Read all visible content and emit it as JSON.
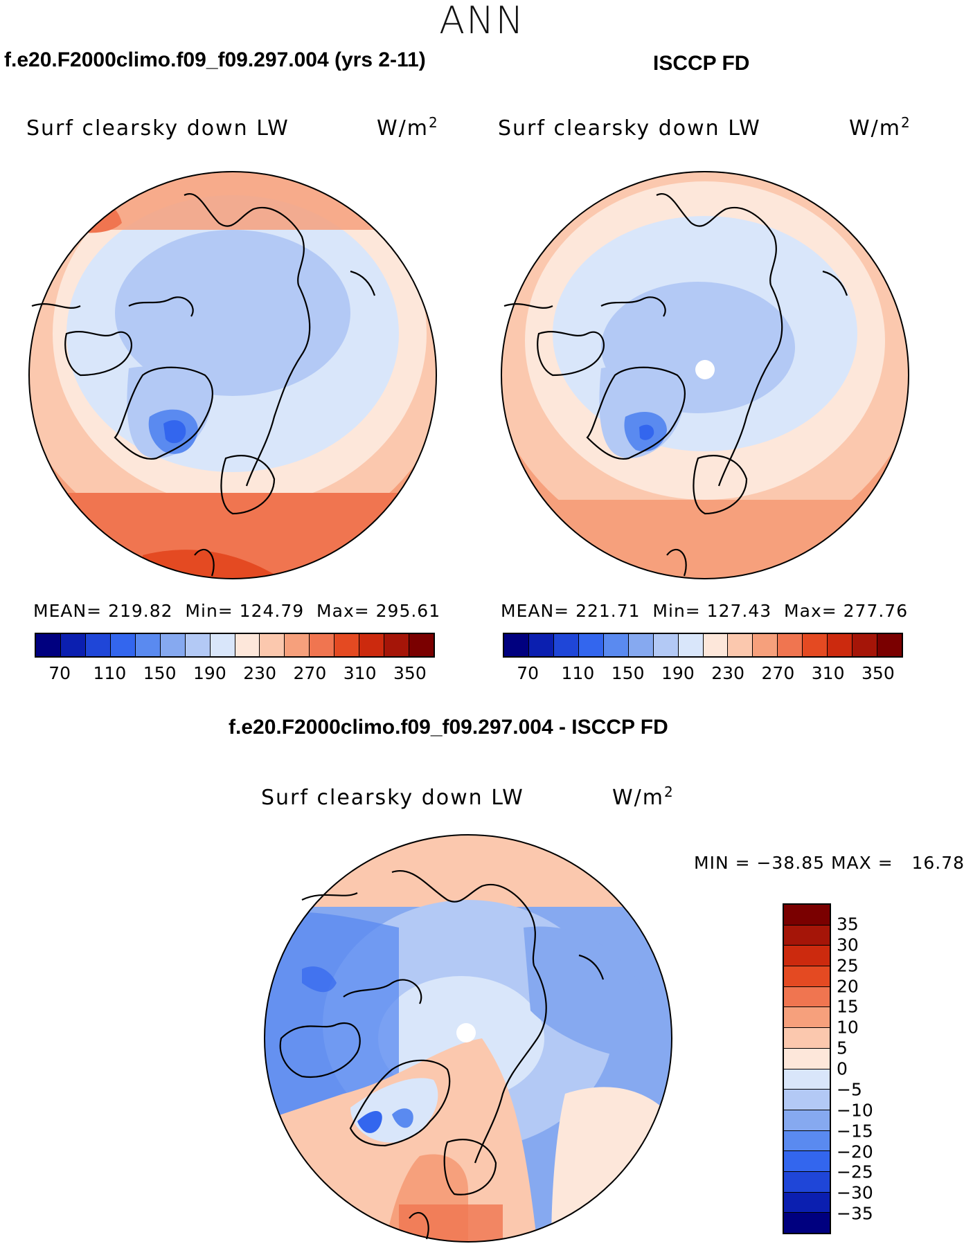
{
  "season": "ANN",
  "panels": {
    "model": {
      "title": "f.e20.F2000climo.f09_f09.297.004 (yrs 2-11)",
      "variable": "Surf clearsky down LW",
      "units_base": "W/m",
      "units_exp": "2",
      "stats": "MEAN= 219.82  Min= 124.79  Max= 295.61"
    },
    "obs": {
      "title": "ISCCP FD",
      "variable": "Surf clearsky down LW",
      "units_base": "W/m",
      "units_exp": "2",
      "stats": "MEAN= 221.71  Min= 127.43  Max= 277.76"
    },
    "diff": {
      "title": "f.e20.F2000climo.f09_f09.297.004 - ISCCP FD",
      "variable": "Surf clearsky down LW",
      "units_base": "W/m",
      "units_exp": "2",
      "stats": "MIN = −38.85 MAX =   16.78"
    }
  },
  "colorbars": {
    "absolute": {
      "colors": [
        "#00007f",
        "#0b1fb0",
        "#1f46d8",
        "#3366ee",
        "#5a8af0",
        "#86a9f0",
        "#b3c9f5",
        "#d9e6fa",
        "#fde7da",
        "#fbc8ae",
        "#f6a07c",
        "#f07550",
        "#e44a22",
        "#cc2a0e",
        "#a51508",
        "#7a0000"
      ],
      "tick_labels": [
        "70",
        "110",
        "150",
        "190",
        "230",
        "270",
        "310",
        "350"
      ]
    },
    "difference": {
      "colors_top_to_bottom": [
        "#7a0000",
        "#a51508",
        "#cc2a0e",
        "#e44a22",
        "#f07550",
        "#f6a07c",
        "#fbc8ae",
        "#fde7da",
        "#d9e6fa",
        "#b3c9f5",
        "#86a9f0",
        "#5a8af0",
        "#3366ee",
        "#1f46d8",
        "#0b1fb0",
        "#00007f"
      ],
      "tick_labels": [
        "35",
        "30",
        "25",
        "20",
        "15",
        "10",
        "5",
        "0",
        "−5",
        "−10",
        "−15",
        "−20",
        "−25",
        "−30",
        "−35"
      ]
    }
  }
}
